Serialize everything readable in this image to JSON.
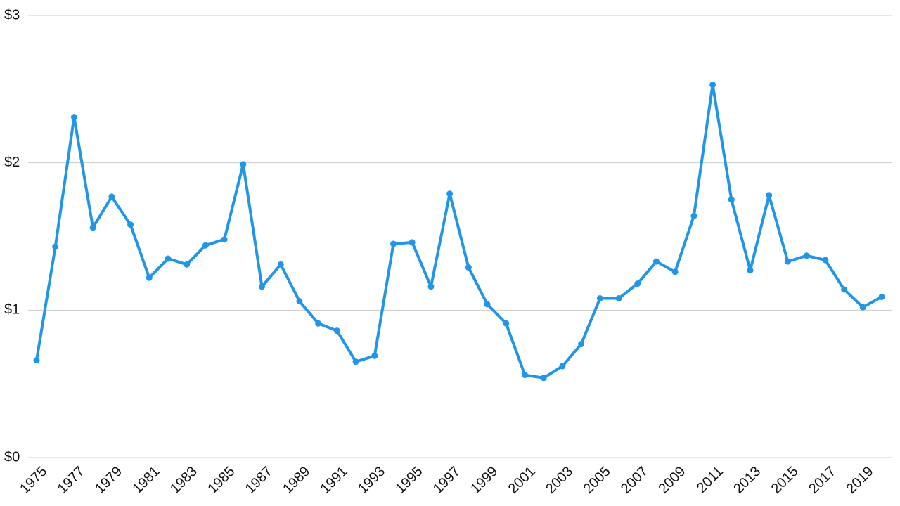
{
  "chart_data": {
    "type": "line",
    "x": [
      1975,
      1976,
      1977,
      1978,
      1979,
      1980,
      1981,
      1982,
      1983,
      1984,
      1985,
      1986,
      1987,
      1988,
      1989,
      1990,
      1991,
      1992,
      1993,
      1994,
      1995,
      1996,
      1997,
      1998,
      1999,
      2000,
      2001,
      2002,
      2003,
      2004,
      2005,
      2006,
      2007,
      2008,
      2009,
      2010,
      2011,
      2012,
      2013,
      2014,
      2015,
      2016,
      2017,
      2018,
      2019,
      2020
    ],
    "series": [
      {
        "color": "#2196e8",
        "values": [
          0.66,
          1.43,
          2.31,
          1.56,
          1.77,
          1.58,
          1.22,
          1.35,
          1.31,
          1.44,
          1.48,
          1.99,
          1.16,
          1.31,
          1.06,
          0.91,
          0.86,
          0.65,
          0.69,
          1.45,
          1.46,
          1.16,
          1.79,
          1.29,
          1.04,
          0.91,
          0.56,
          0.54,
          0.62,
          0.77,
          1.08,
          1.08,
          1.18,
          1.33,
          1.26,
          1.64,
          2.53,
          1.75,
          1.27,
          1.78,
          1.33,
          1.37,
          1.34,
          1.14,
          1.02,
          1.09
        ]
      }
    ],
    "xlim": [
      1975,
      2020
    ],
    "xticks": [
      1975,
      1977,
      1979,
      1981,
      1983,
      1985,
      1987,
      1989,
      1991,
      1993,
      1995,
      1997,
      1999,
      2001,
      2003,
      2005,
      2007,
      2009,
      2011,
      2013,
      2015,
      2017,
      2019
    ],
    "ylim": [
      0,
      3
    ],
    "yticks": [
      {
        "value": 0,
        "label": "$0"
      },
      {
        "value": 1,
        "label": "$1"
      },
      {
        "value": 2,
        "label": "$2"
      },
      {
        "value": 3,
        "label": "$3"
      }
    ],
    "grid": true
  }
}
